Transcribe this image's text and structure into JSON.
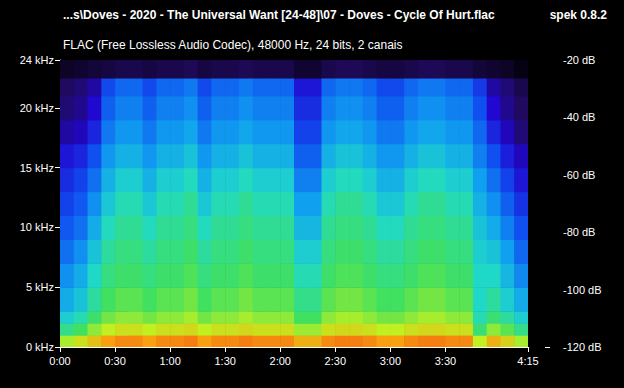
{
  "chart_data": {
    "type": "heatmap",
    "title": "...s\\Doves - 2020 - The Universal Want [24-48]\\07 - Doves - Cycle Of Hurt.flac",
    "subtitle": "FLAC (Free Lossless Audio Codec), 48000 Hz, 24 bits, 2 canais",
    "annotations": [
      "spek 0.8.2"
    ],
    "grid": false,
    "xlim": [
      0,
      255
    ],
    "xticks": [
      {
        "value": 0,
        "label": "0:00"
      },
      {
        "value": 30,
        "label": "0:30"
      },
      {
        "value": 60,
        "label": "1:00"
      },
      {
        "value": 90,
        "label": "1:30"
      },
      {
        "value": 120,
        "label": "2:00"
      },
      {
        "value": 150,
        "label": "2:30"
      },
      {
        "value": 180,
        "label": "3:00"
      },
      {
        "value": 210,
        "label": "3:30"
      },
      {
        "value": 255,
        "label": "4:15"
      }
    ],
    "ylim": [
      0,
      24
    ],
    "yticks": [
      {
        "value": 0,
        "label": "0 kHz"
      },
      {
        "value": 5,
        "label": "5 kHz"
      },
      {
        "value": 10,
        "label": "10 kHz"
      },
      {
        "value": 15,
        "label": "15 kHz"
      },
      {
        "value": 20,
        "label": "20 kHz"
      },
      {
        "value": 24,
        "label": "24 kHz"
      }
    ],
    "colorbar": {
      "range": [
        -120,
        -20
      ],
      "ticks": [
        {
          "value": -120,
          "label": "-120 dB"
        },
        {
          "value": -100,
          "label": "-100 dB"
        },
        {
          "value": -80,
          "label": "-80 dB"
        },
        {
          "value": -60,
          "label": "-60 dB"
        },
        {
          "value": -40,
          "label": "-40 dB"
        },
        {
          "value": -20,
          "label": "-20 dB"
        }
      ]
    },
    "time_bins": [
      0,
      7.5,
      15,
      22.5,
      30,
      37.5,
      45,
      52.5,
      60,
      67.5,
      75,
      82.5,
      90,
      97.5,
      105,
      112.5,
      120,
      127.5,
      135,
      142.5,
      150,
      157.5,
      165,
      172.5,
      180,
      187.5,
      195,
      202.5,
      210,
      217.5,
      225,
      232.5,
      240,
      247.5,
      255
    ],
    "freq_bins": [
      0,
      1,
      2,
      3,
      5,
      7,
      9,
      11,
      13,
      15,
      17,
      19,
      21,
      22.5,
      24
    ],
    "cells": [
      [
        -52,
        -64,
        -72,
        -78,
        -82,
        -86,
        -89,
        -92,
        -95,
        -98,
        -104,
        -108,
        -110,
        -116
      ],
      [
        -48,
        -60,
        -68,
        -74,
        -78,
        -82,
        -86,
        -89,
        -92,
        -96,
        -102,
        -106,
        -108,
        -115
      ],
      [
        -44,
        -54,
        -61,
        -66,
        -70,
        -74,
        -78,
        -82,
        -86,
        -90,
        -96,
        -100,
        -104,
        -114
      ],
      [
        -40,
        -50,
        -56,
        -60,
        -63,
        -66,
        -69,
        -73,
        -77,
        -81,
        -85,
        -88,
        -91,
        -113
      ],
      [
        -38,
        -48,
        -54,
        -58,
        -61,
        -63,
        -65,
        -68,
        -72,
        -77,
        -81,
        -84,
        -87,
        -112
      ],
      [
        -38,
        -48,
        -54,
        -58,
        -61,
        -63,
        -65,
        -68,
        -72,
        -77,
        -81,
        -84,
        -87,
        -112
      ],
      [
        -40,
        -50,
        -56,
        -60,
        -63,
        -66,
        -69,
        -73,
        -77,
        -81,
        -85,
        -88,
        -91,
        -113
      ],
      [
        -38,
        -48,
        -54,
        -58,
        -61,
        -63,
        -65,
        -68,
        -72,
        -77,
        -81,
        -84,
        -87,
        -112
      ],
      [
        -38,
        -48,
        -54,
        -58,
        -61,
        -63,
        -65,
        -68,
        -72,
        -77,
        -81,
        -84,
        -87,
        -112
      ],
      [
        -37,
        -47,
        -52,
        -56,
        -59,
        -61,
        -63,
        -65,
        -69,
        -74,
        -79,
        -82,
        -85,
        -111
      ],
      [
        -40,
        -50,
        -56,
        -60,
        -63,
        -66,
        -69,
        -73,
        -77,
        -81,
        -85,
        -88,
        -91,
        -113
      ],
      [
        -38,
        -48,
        -54,
        -58,
        -61,
        -63,
        -65,
        -68,
        -72,
        -77,
        -81,
        -84,
        -87,
        -112
      ],
      [
        -38,
        -48,
        -54,
        -58,
        -61,
        -63,
        -65,
        -68,
        -72,
        -77,
        -81,
        -84,
        -87,
        -112
      ],
      [
        -37,
        -47,
        -52,
        -56,
        -59,
        -61,
        -63,
        -65,
        -69,
        -74,
        -79,
        -82,
        -85,
        -111
      ],
      [
        -38,
        -48,
        -54,
        -58,
        -61,
        -63,
        -65,
        -68,
        -72,
        -77,
        -81,
        -84,
        -87,
        -112
      ],
      [
        -38,
        -48,
        -54,
        -58,
        -61,
        -63,
        -65,
        -68,
        -72,
        -77,
        -81,
        -84,
        -87,
        -112
      ],
      [
        -38,
        -48,
        -54,
        -58,
        -61,
        -63,
        -65,
        -68,
        -72,
        -77,
        -81,
        -84,
        -87,
        -112
      ],
      [
        -42,
        -53,
        -60,
        -64,
        -68,
        -72,
        -76,
        -80,
        -84,
        -88,
        -92,
        -95,
        -98,
        -115
      ],
      [
        -42,
        -53,
        -60,
        -64,
        -68,
        -72,
        -76,
        -80,
        -84,
        -88,
        -92,
        -95,
        -98,
        -115
      ],
      [
        -38,
        -48,
        -54,
        -58,
        -61,
        -63,
        -65,
        -68,
        -72,
        -77,
        -81,
        -84,
        -87,
        -112
      ],
      [
        -37,
        -47,
        -52,
        -56,
        -59,
        -61,
        -63,
        -65,
        -69,
        -74,
        -79,
        -82,
        -85,
        -111
      ],
      [
        -37,
        -47,
        -52,
        -56,
        -59,
        -61,
        -63,
        -65,
        -69,
        -74,
        -79,
        -82,
        -85,
        -111
      ],
      [
        -38,
        -48,
        -54,
        -58,
        -61,
        -63,
        -65,
        -68,
        -72,
        -77,
        -81,
        -84,
        -87,
        -112
      ],
      [
        -40,
        -50,
        -56,
        -60,
        -63,
        -66,
        -69,
        -73,
        -77,
        -81,
        -85,
        -88,
        -91,
        -113
      ],
      [
        -40,
        -50,
        -56,
        -60,
        -63,
        -66,
        -69,
        -73,
        -77,
        -81,
        -85,
        -88,
        -91,
        -113
      ],
      [
        -38,
        -48,
        -54,
        -58,
        -61,
        -63,
        -65,
        -68,
        -72,
        -77,
        -81,
        -84,
        -87,
        -112
      ],
      [
        -37,
        -47,
        -52,
        -56,
        -59,
        -61,
        -63,
        -65,
        -69,
        -74,
        -79,
        -82,
        -85,
        -111
      ],
      [
        -37,
        -47,
        -52,
        -56,
        -59,
        -61,
        -63,
        -65,
        -69,
        -74,
        -79,
        -82,
        -85,
        -111
      ],
      [
        -38,
        -48,
        -54,
        -58,
        -61,
        -63,
        -65,
        -68,
        -72,
        -77,
        -81,
        -84,
        -87,
        -112
      ],
      [
        -38,
        -48,
        -54,
        -58,
        -61,
        -63,
        -65,
        -68,
        -72,
        -77,
        -81,
        -84,
        -87,
        -112
      ],
      [
        -50,
        -62,
        -68,
        -70,
        -70,
        -72,
        -74,
        -77,
        -80,
        -84,
        -87,
        -90,
        -93,
        -114
      ],
      [
        -42,
        -54,
        -62,
        -66,
        -70,
        -74,
        -78,
        -82,
        -86,
        -90,
        -96,
        -100,
        -104,
        -115
      ],
      [
        -46,
        -58,
        -66,
        -72,
        -76,
        -80,
        -84,
        -88,
        -92,
        -97,
        -102,
        -106,
        -108,
        -116
      ],
      [
        -52,
        -64,
        -72,
        -78,
        -83,
        -87,
        -90,
        -94,
        -98,
        -102,
        -108,
        -110,
        -112,
        -118
      ]
    ]
  }
}
